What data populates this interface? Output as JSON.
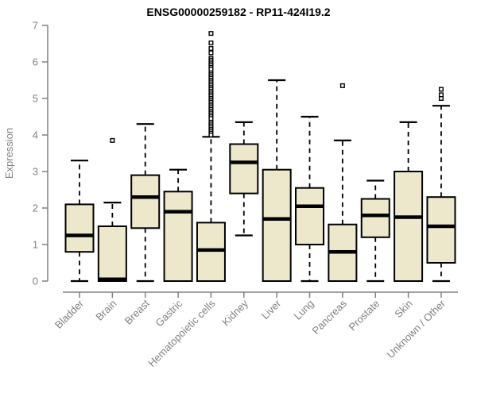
{
  "chart_data": {
    "type": "boxplot",
    "title": "ENSG00000259182 - RP11-424I19.2",
    "ylabel": "Expression",
    "xlabel": "",
    "ylim": [
      0,
      7
    ],
    "yticks": [
      0,
      1,
      2,
      3,
      4,
      5,
      6,
      7
    ],
    "grid": false,
    "legend": "none",
    "colors": {
      "box_fill": "#EDE8CC",
      "box_stroke": "#000000",
      "median_stroke": "#000000",
      "whisker_stroke": "#000000",
      "axis_color": "#808080",
      "title_color": "#000000",
      "background": "#ffffff"
    },
    "boxes": [
      {
        "label": "Bladder",
        "min": 0,
        "q1": 0.8,
        "median": 1.25,
        "q3": 2.1,
        "max": 3.3,
        "outliers": []
      },
      {
        "label": "Brain",
        "min": 0,
        "q1": 0,
        "median": 0.05,
        "q3": 1.5,
        "max": 2.15,
        "outliers": [
          3.85
        ]
      },
      {
        "label": "Breast",
        "min": 0,
        "q1": 1.45,
        "median": 2.3,
        "q3": 2.9,
        "max": 4.3,
        "outliers": []
      },
      {
        "label": "Gastric",
        "min": 0,
        "q1": 0,
        "median": 1.9,
        "q3": 2.45,
        "max": 3.05,
        "outliers": []
      },
      {
        "label": "Hematopoietic cells",
        "min": 0,
        "q1": 0,
        "median": 0.85,
        "q3": 1.6,
        "max": 3.95,
        "outliers": [
          6.78,
          6.52,
          6.37,
          6.25,
          6.1,
          6.05,
          6.0,
          5.95,
          5.9,
          5.85,
          5.8,
          5.7,
          5.65,
          5.6,
          5.55,
          5.5,
          5.45,
          5.4,
          5.35,
          5.3,
          5.25,
          5.2,
          5.15,
          5.1,
          5.05,
          5.0,
          4.95,
          4.9,
          4.85,
          4.8,
          4.75,
          4.7,
          4.65,
          4.6,
          4.55,
          4.5,
          4.45,
          4.35,
          4.3,
          4.25,
          4.2,
          4.15,
          4.1,
          4.05,
          4.0
        ]
      },
      {
        "label": "Kidney",
        "min": 1.25,
        "q1": 2.4,
        "median": 3.25,
        "q3": 3.75,
        "max": 4.35,
        "outliers": []
      },
      {
        "label": "Liver",
        "min": 0,
        "q1": 0,
        "median": 1.7,
        "q3": 3.05,
        "max": 5.5,
        "outliers": []
      },
      {
        "label": "Lung",
        "min": 0,
        "q1": 1.0,
        "median": 2.05,
        "q3": 2.55,
        "max": 4.5,
        "outliers": []
      },
      {
        "label": "Pancreas",
        "min": 0,
        "q1": 0,
        "median": 0.8,
        "q3": 1.55,
        "max": 3.85,
        "outliers": [
          5.35
        ]
      },
      {
        "label": "Prostate",
        "min": 0,
        "q1": 1.2,
        "median": 1.8,
        "q3": 2.25,
        "max": 2.75,
        "outliers": []
      },
      {
        "label": "Skin",
        "min": 0,
        "q1": 0,
        "median": 1.75,
        "q3": 3.0,
        "max": 4.35,
        "outliers": []
      },
      {
        "label": "Unknown / Other",
        "min": 0,
        "q1": 0.5,
        "median": 1.5,
        "q3": 2.3,
        "max": 4.8,
        "outliers": [
          5.25,
          5.1,
          5.0
        ]
      }
    ]
  }
}
